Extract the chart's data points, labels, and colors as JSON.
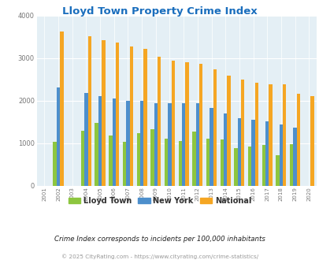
{
  "title": "Lloyd Town Property Crime Index",
  "years": [
    2001,
    2002,
    2003,
    2004,
    2005,
    2006,
    2007,
    2008,
    2009,
    2010,
    2011,
    2012,
    2013,
    2014,
    2015,
    2016,
    2017,
    2018,
    2019,
    2020
  ],
  "lloyd_town": [
    0,
    1040,
    0,
    1300,
    1480,
    1190,
    1040,
    1240,
    1330,
    1110,
    1060,
    1270,
    1110,
    1100,
    890,
    920,
    970,
    720,
    980,
    0
  ],
  "new_york": [
    0,
    2320,
    0,
    2180,
    2100,
    2060,
    1990,
    1995,
    1950,
    1950,
    1940,
    1950,
    1840,
    1710,
    1590,
    1550,
    1510,
    1440,
    1360,
    0
  ],
  "national": [
    0,
    3620,
    0,
    3510,
    3420,
    3360,
    3280,
    3220,
    3040,
    2940,
    2900,
    2860,
    2730,
    2590,
    2490,
    2430,
    2380,
    2380,
    2170,
    2100
  ],
  "lloyd_color": "#8dc63f",
  "ny_color": "#4d8fcc",
  "national_color": "#f5a623",
  "bg_color": "#e4eff5",
  "ylim": [
    0,
    4000
  ],
  "subtitle": "Crime Index corresponds to incidents per 100,000 inhabitants",
  "footer": "© 2025 CityRating.com - https://www.cityrating.com/crime-statistics/",
  "legend_labels": [
    "Lloyd Town",
    "New York",
    "National"
  ]
}
